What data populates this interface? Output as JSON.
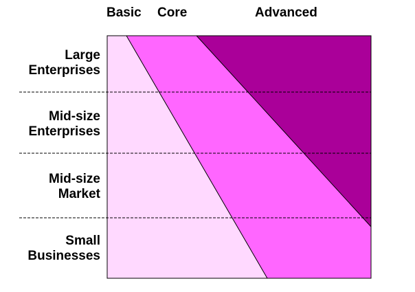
{
  "columns": {
    "basic": "Basic",
    "core": "Core",
    "advanced": "Advanced"
  },
  "rows": {
    "large": [
      "Large",
      "Enterprises"
    ],
    "midsize_enterprises": [
      "Mid-size",
      "Enterprises"
    ],
    "midsize_market": [
      "Mid-size",
      "Market"
    ],
    "small": [
      "Small",
      "Businesses"
    ]
  },
  "colors": {
    "basic": "#ffd9ff",
    "core": "#ff66ff",
    "advanced": "#aa0099",
    "border": "#000000",
    "divider": "#000000"
  }
}
